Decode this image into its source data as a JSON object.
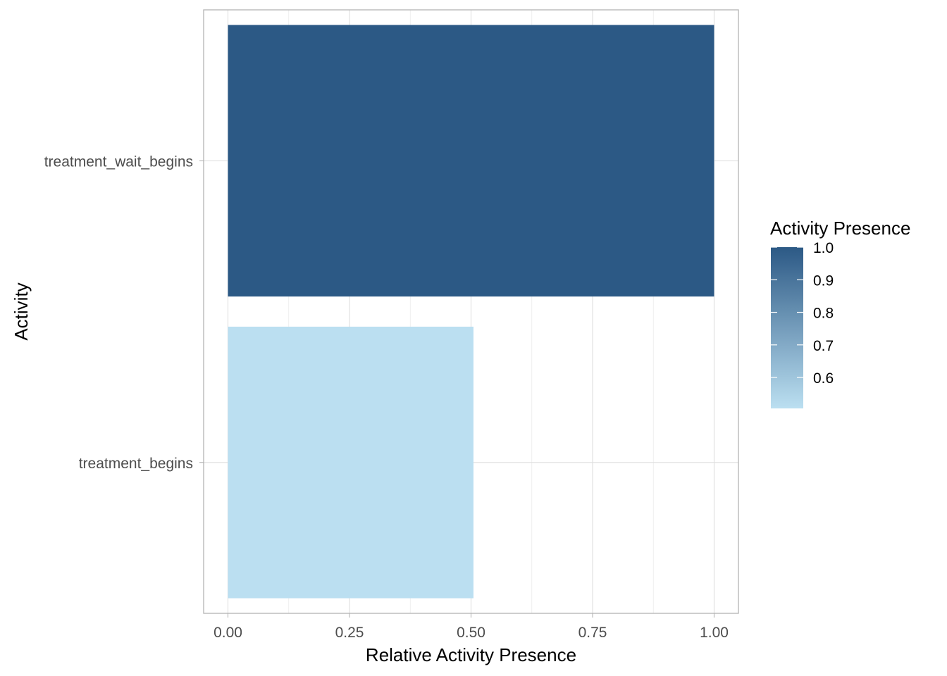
{
  "chart_data": {
    "type": "bar",
    "orientation": "horizontal",
    "categories": [
      "treatment_begins",
      "treatment_wait_begins"
    ],
    "values": [
      0.505,
      1.0
    ],
    "xlabel": "Relative Activity Presence",
    "ylabel": "Activity",
    "xlim": [
      -0.05,
      1.05
    ],
    "x_ticks": [
      "0.00",
      "0.25",
      "0.50",
      "0.75",
      "1.00"
    ],
    "x_tick_values": [
      0,
      0.25,
      0.5,
      0.75,
      1.0
    ],
    "grid": true,
    "legend": {
      "title": "Activity Presence",
      "placement": "right",
      "type": "colorbar",
      "range": [
        0.505,
        1.0
      ],
      "ticks": [
        "0.6",
        "0.7",
        "0.8",
        "0.9",
        "1.0"
      ],
      "tick_values": [
        0.6,
        0.7,
        0.8,
        0.9,
        1.0
      ],
      "color_low": "#BBDFF1",
      "color_high": "#2C5985"
    },
    "bar_colors": [
      "#BBDFF1",
      "#2C5985"
    ]
  }
}
